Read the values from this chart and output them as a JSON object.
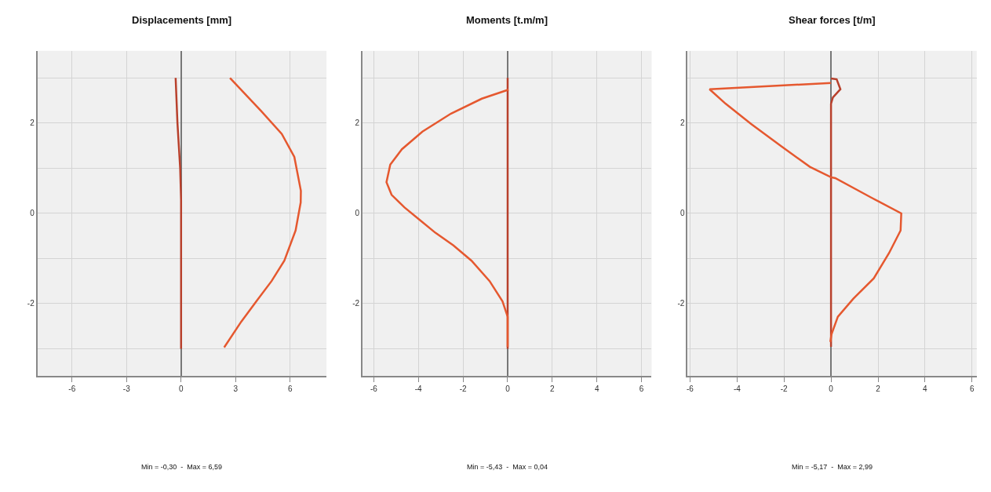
{
  "chart_data": [
    {
      "type": "line",
      "title": "Displacements [mm]",
      "xlim": [
        -7.9,
        8
      ],
      "ylim": [
        -3.6,
        3.6
      ],
      "xticks": [
        -6,
        -3,
        0,
        3,
        6
      ],
      "yticks": [
        {
          "value": -3,
          "label": null
        },
        -2,
        {
          "value": -1,
          "label": null
        },
        0,
        {
          "value": 1,
          "label": null
        },
        2,
        {
          "value": 3,
          "label": null
        }
      ],
      "grid": true,
      "annotations": [
        "Min = -0,30  -  Max = 6,59"
      ],
      "series": [
        {
          "color": "#b8402c",
          "x": [
            -0.3,
            -0.2,
            -0.05,
            0,
            0,
            0
          ],
          "values": [
            3,
            2,
            1,
            0.3,
            0,
            -3
          ]
        },
        {
          "color": "#e5582f",
          "x": [
            2.69,
            4.42,
            5.54,
            6.23,
            6.59,
            6.58,
            6.3,
            5.68,
            4.98,
            4.14,
            3.31,
            2.37
          ],
          "values": [
            3,
            2.26,
            1.76,
            1.25,
            0.5,
            0.24,
            -0.38,
            -1.05,
            -1.5,
            -1.95,
            -2.4,
            -2.97
          ]
        }
      ]
    },
    {
      "type": "line",
      "title": "Moments [t.m/m]",
      "xlim": [
        -6.5,
        6.45
      ],
      "ylim": [
        -3.6,
        3.6
      ],
      "xticks": [
        -6,
        -4,
        -2,
        0,
        2,
        4,
        6
      ],
      "yticks": [
        {
          "value": -3,
          "label": null
        },
        -2,
        {
          "value": -1,
          "label": null
        },
        0,
        {
          "value": 1,
          "label": null
        },
        2,
        {
          "value": 3,
          "label": null
        }
      ],
      "grid": true,
      "annotations": [
        "Min = -5,43  -  Max = 0,04"
      ],
      "series": [
        {
          "color": "#b8402c",
          "x": [
            0,
            0
          ],
          "values": [
            3,
            -3
          ]
        },
        {
          "color": "#e5582f",
          "x": [
            0.04,
            -1.16,
            -2.54,
            -3.82,
            -4.74,
            -5.26,
            -5.43,
            -5.2,
            -4.62,
            -3.93,
            -3.24,
            -2.43,
            -1.62,
            -0.81,
            -0.23,
            0,
            0
          ],
          "values": [
            2.74,
            2.54,
            2.21,
            1.81,
            1.42,
            1.08,
            0.69,
            0.41,
            0.13,
            -0.15,
            -0.43,
            -0.71,
            -1.05,
            -1.5,
            -1.95,
            -2.29,
            -2.96
          ]
        }
      ]
    },
    {
      "type": "line",
      "title": "Shear forces [t/m]",
      "xlim": [
        -6.1,
        6.2
      ],
      "ylim": [
        -3.6,
        3.6
      ],
      "xticks": [
        -6,
        -4,
        -2,
        0,
        2,
        4,
        6
      ],
      "yticks": [
        {
          "value": -3,
          "label": null
        },
        -2,
        {
          "value": -1,
          "label": null
        },
        0,
        {
          "value": 1,
          "label": null
        },
        2,
        {
          "value": 3,
          "label": null
        }
      ],
      "grid": true,
      "annotations": [
        "Min = -5,17  -  Max = 2,99"
      ],
      "series": [
        {
          "color": "#b8402c",
          "x": [
            0,
            0.24,
            0.4,
            0.08,
            0,
            0
          ],
          "values": [
            2.99,
            2.97,
            2.75,
            2.57,
            2.43,
            -2.96
          ]
        },
        {
          "color": "#e5582f",
          "x": [
            0,
            -5.17,
            -4.49,
            -3.4,
            -2.1,
            -0.9,
            0,
            0.18,
            1.71,
            2.99,
            2.96,
            2.47,
            1.82,
            0.95,
            0.29,
            0.02,
            -0.03
          ],
          "values": [
            2.89,
            2.75,
            2.43,
            1.98,
            1.48,
            1.03,
            0.8,
            0.78,
            0.35,
            0,
            -0.38,
            -0.88,
            -1.44,
            -1.89,
            -2.29,
            -2.68,
            -2.85
          ]
        }
      ]
    }
  ]
}
